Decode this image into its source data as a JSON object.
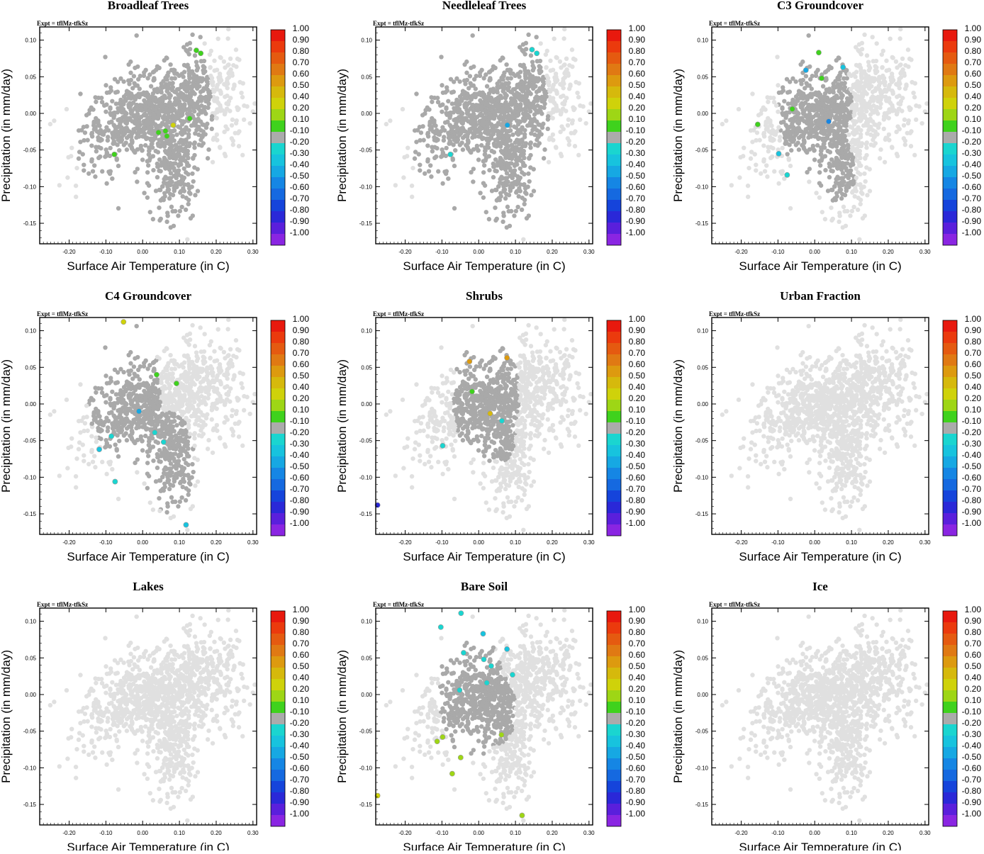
{
  "figure": {
    "expt_label": "Expt = tflMz-tfkSz",
    "background_point_color": "#e0e0e0",
    "neutral_point_color": "#a9a9a9"
  },
  "colorbar": {
    "labels": [
      "1.00",
      "0.90",
      "0.80",
      "0.70",
      "0.60",
      "0.50",
      "0.40",
      "0.20",
      "0.10",
      "-0.10",
      "-0.20",
      "-0.30",
      "-0.40",
      "-0.50",
      "-0.60",
      "-0.70",
      "-0.80",
      "-0.90",
      "-1.00"
    ],
    "colors": [
      "#e8190e",
      "#eb3a0d",
      "#e55a10",
      "#e07913",
      "#dd9a0f",
      "#d6b90c",
      "#cfd20a",
      "#9ed615",
      "#3fd21d",
      "#ababab",
      "#1ad5d0",
      "#17c3de",
      "#16a8e3",
      "#1586e4",
      "#1569e0",
      "#1544db",
      "#2a28d8",
      "#5a1fdc",
      "#8a25e2"
    ]
  },
  "chart_data": [
    {
      "type": "scatter",
      "title": "Broadleaf Trees",
      "xlabel": "Surface Air Temperature (in C)",
      "ylabel": "Precipitation (in mm/day)",
      "xlim": [
        -0.28,
        0.31
      ],
      "ylim": [
        -0.178,
        0.118
      ],
      "xticks": [
        "-0.20",
        "-0.10",
        "0.00",
        "0.10",
        "0.20",
        "0.30"
      ],
      "yticks": [
        "0.10",
        "0.05",
        "0.00",
        "-0.05",
        "-0.10",
        "-0.15"
      ],
      "active": [
        [
          0.0,
          0.0,
          0.19
        ],
        [
          0.05,
          -0.05,
          0.13
        ],
        [
          0.1,
          -0.02,
          0.05
        ],
        [
          0.08,
          -0.08,
          0.07
        ]
      ],
      "colored": [
        [
          0.146,
          0.086,
          0.1
        ],
        [
          0.158,
          0.082,
          0.1
        ],
        [
          0.128,
          -0.007,
          0.1
        ],
        [
          0.083,
          -0.016,
          0.4
        ],
        [
          0.062,
          -0.024,
          0.1
        ],
        [
          0.043,
          -0.026,
          0.1
        ],
        [
          0.066,
          -0.031,
          0.1
        ],
        [
          -0.077,
          -0.056,
          0.1
        ]
      ]
    },
    {
      "type": "scatter",
      "title": "Needleleaf Trees",
      "xlabel": "Surface Air Temperature (in C)",
      "ylabel": "Precipitation (in mm/day)",
      "xlim": [
        -0.28,
        0.31
      ],
      "ylim": [
        -0.178,
        0.118
      ],
      "xticks": [
        "-0.20",
        "-0.10",
        "0.00",
        "0.10",
        "0.20",
        "0.30"
      ],
      "yticks": [
        "0.10",
        "0.05",
        "0.00",
        "-0.05",
        "-0.10",
        "-0.15"
      ],
      "active": [
        [
          0.0,
          0.0,
          0.19
        ],
        [
          0.05,
          -0.05,
          0.13
        ],
        [
          0.1,
          -0.02,
          0.05
        ],
        [
          0.08,
          -0.08,
          0.07
        ]
      ],
      "colored": [
        [
          0.145,
          0.087,
          -0.2
        ],
        [
          0.158,
          0.082,
          -0.2
        ],
        [
          0.078,
          -0.016,
          -0.4
        ],
        [
          -0.077,
          -0.056,
          -0.2
        ]
      ]
    },
    {
      "type": "scatter",
      "title": "C3 Groundcover",
      "xlabel": "Surface Air Temperature (in C)",
      "ylabel": "Precipitation (in mm/day)",
      "xlim": [
        -0.28,
        0.31
      ],
      "ylim": [
        -0.178,
        0.118
      ],
      "xticks": [
        "-0.20",
        "-0.10",
        "0.00",
        "0.10",
        "0.20",
        "0.30"
      ],
      "yticks": [
        "0.10",
        "0.05",
        "0.00",
        "-0.05",
        "-0.10",
        "-0.15"
      ],
      "active": [
        [
          0.0,
          0.01,
          0.1
        ],
        [
          -0.03,
          0.03,
          0.06
        ],
        [
          0.06,
          -0.08,
          0.05
        ]
      ],
      "colored": [
        [
          0.011,
          0.083,
          0.1
        ],
        [
          0.077,
          0.063,
          -0.3
        ],
        [
          -0.024,
          0.059,
          -0.4
        ],
        [
          0.019,
          0.048,
          0.1
        ],
        [
          -0.061,
          0.006,
          0.1
        ],
        [
          0.038,
          -0.011,
          -0.5
        ],
        [
          -0.155,
          -0.015,
          0.1
        ],
        [
          -0.098,
          -0.055,
          -0.3
        ],
        [
          -0.075,
          -0.084,
          -0.2
        ]
      ]
    },
    {
      "type": "scatter",
      "title": "C4 Groundcover",
      "xlabel": "Surface Air Temperature (in C)",
      "ylabel": "Precipitation (in mm/day)",
      "xlim": [
        -0.28,
        0.31
      ],
      "ylim": [
        -0.178,
        0.118
      ],
      "xticks": [
        "-0.20",
        "-0.10",
        "0.00",
        "0.10",
        "0.20",
        "0.30"
      ],
      "yticks": [
        "0.10",
        "0.05",
        "0.00",
        "-0.05",
        "-0.10",
        "-0.15"
      ],
      "active": [
        [
          -0.05,
          0.02,
          0.1
        ],
        [
          0.07,
          -0.08,
          0.07
        ],
        [
          0.0,
          -0.03,
          0.06
        ]
      ],
      "colored": [
        [
          -0.052,
          0.112,
          0.4
        ],
        [
          0.038,
          0.04,
          0.1
        ],
        [
          0.092,
          0.028,
          0.1
        ],
        [
          -0.01,
          -0.01,
          -0.4
        ],
        [
          0.033,
          -0.039,
          -0.2
        ],
        [
          -0.085,
          -0.044,
          -0.2
        ],
        [
          0.057,
          -0.052,
          -0.2
        ],
        [
          -0.118,
          -0.062,
          -0.3
        ],
        [
          -0.075,
          -0.106,
          -0.2
        ],
        [
          0.118,
          -0.165,
          -0.3
        ]
      ]
    },
    {
      "type": "scatter",
      "title": "Shrubs",
      "xlabel": "Surface Air Temperature (in C)",
      "ylabel": "Precipitation (in mm/day)",
      "xlim": [
        -0.28,
        0.31
      ],
      "ylim": [
        -0.178,
        0.118
      ],
      "xticks": [
        "-0.20",
        "-0.10",
        "0.00",
        "0.10",
        "0.20",
        "0.30"
      ],
      "yticks": [
        "0.10",
        "0.05",
        "0.00",
        "-0.05",
        "-0.10",
        "-0.15"
      ],
      "active": [
        [
          0.02,
          0.01,
          0.09
        ],
        [
          0.06,
          -0.04,
          0.04
        ]
      ],
      "colored": [
        [
          0.077,
          0.063,
          0.6
        ],
        [
          -0.025,
          0.058,
          0.6
        ],
        [
          -0.018,
          0.017,
          0.1
        ],
        [
          0.031,
          -0.013,
          0.5
        ],
        [
          0.063,
          -0.023,
          -0.2
        ],
        [
          -0.098,
          -0.057,
          -0.2
        ],
        [
          -0.275,
          -0.138,
          -0.8
        ]
      ]
    },
    {
      "type": "scatter",
      "title": "Urban Fraction",
      "xlabel": "Surface Air Temperature (in C)",
      "ylabel": "Precipitation (in mm/day)",
      "xlim": [
        -0.28,
        0.31
      ],
      "ylim": [
        -0.178,
        0.118
      ],
      "xticks": [
        "-0.20",
        "-0.10",
        "0.00",
        "0.10",
        "0.20",
        "0.30"
      ],
      "yticks": [
        "0.10",
        "0.05",
        "0.00",
        "-0.05",
        "-0.10",
        "-0.15"
      ],
      "active": [],
      "colored": []
    },
    {
      "type": "scatter",
      "title": "Lakes",
      "xlabel": "Surface Air Temperature (in C)",
      "ylabel": "Precipitation (in mm/day)",
      "xlim": [
        -0.28,
        0.31
      ],
      "ylim": [
        -0.178,
        0.118
      ],
      "xticks": [
        "-0.20",
        "-0.10",
        "0.00",
        "0.10",
        "0.20",
        "0.30"
      ],
      "yticks": [
        "0.10",
        "0.05",
        "0.00",
        "-0.05",
        "-0.10",
        "-0.15"
      ],
      "active": [],
      "colored": []
    },
    {
      "type": "scatter",
      "title": "Bare Soil",
      "xlabel": "Surface Air Temperature (in C)",
      "ylabel": "Precipitation (in mm/day)",
      "xlim": [
        -0.28,
        0.31
      ],
      "ylim": [
        -0.178,
        0.118
      ],
      "xticks": [
        "-0.20",
        "-0.10",
        "0.00",
        "0.10",
        "0.20",
        "0.30"
      ],
      "yticks": [
        "0.10",
        "0.05",
        "0.00",
        "-0.05",
        "-0.10",
        "-0.15"
      ],
      "active": [
        [
          -0.02,
          0.0,
          0.09
        ],
        [
          0.05,
          -0.02,
          0.05
        ],
        [
          -0.06,
          0.04,
          0.05
        ]
      ],
      "colored": [
        [
          -0.048,
          0.111,
          -0.2
        ],
        [
          -0.103,
          0.092,
          -0.2
        ],
        [
          0.012,
          0.083,
          -0.3
        ],
        [
          0.077,
          0.062,
          -0.3
        ],
        [
          -0.041,
          0.057,
          -0.2
        ],
        [
          0.014,
          0.048,
          -0.2
        ],
        [
          0.034,
          0.039,
          -0.2
        ],
        [
          0.092,
          0.027,
          -0.2
        ],
        [
          0.022,
          0.016,
          -0.2
        ],
        [
          -0.052,
          0.006,
          -0.2
        ],
        [
          0.062,
          -0.055,
          0.2
        ],
        [
          -0.098,
          -0.058,
          0.2
        ],
        [
          -0.113,
          -0.064,
          0.2
        ],
        [
          -0.049,
          -0.086,
          0.2
        ],
        [
          -0.072,
          -0.108,
          0.2
        ],
        [
          -0.275,
          -0.138,
          0.4
        ],
        [
          0.118,
          -0.165,
          0.2
        ]
      ]
    },
    {
      "type": "scatter",
      "title": "Ice",
      "xlabel": "Surface Air Temperature (in C)",
      "ylabel": "Precipitation (in mm/day)",
      "xlim": [
        -0.28,
        0.31
      ],
      "ylim": [
        -0.178,
        0.118
      ],
      "xticks": [
        "-0.20",
        "-0.10",
        "0.00",
        "0.10",
        "0.20",
        "0.30"
      ],
      "yticks": [
        "0.10",
        "0.05",
        "0.00",
        "-0.05",
        "-0.10",
        "-0.15"
      ],
      "active": [],
      "colored": []
    }
  ]
}
